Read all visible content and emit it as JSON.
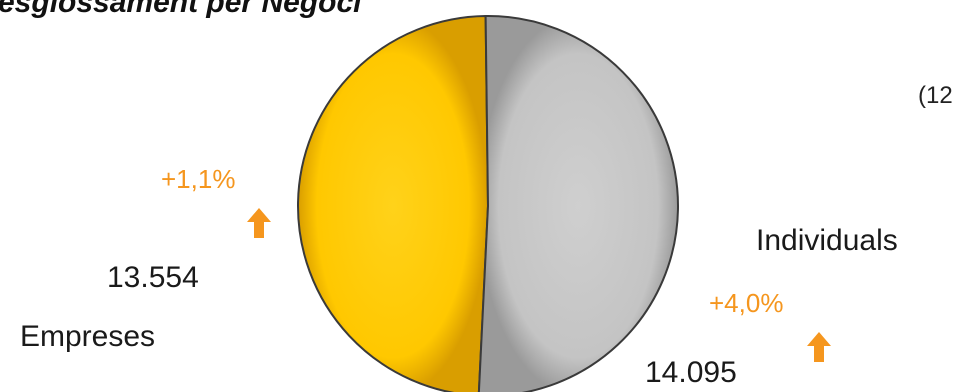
{
  "title": "esglossament per Negoci",
  "corner_note": "(12",
  "colors": {
    "empreses_slice": "#ffc800",
    "individuals_slice": "#c6c6c6",
    "change_positive": "#f5961e"
  },
  "chart_data": {
    "type": "pie",
    "title": "esglossament per Negoci",
    "categories": [
      "Empreses",
      "Individuals"
    ],
    "values": [
      13554,
      14095
    ],
    "value_labels": [
      "13.554",
      "14.095"
    ],
    "changes": [
      "+1,1%",
      "+4,0%"
    ],
    "change_direction_icon": "arrow-up-icon"
  }
}
